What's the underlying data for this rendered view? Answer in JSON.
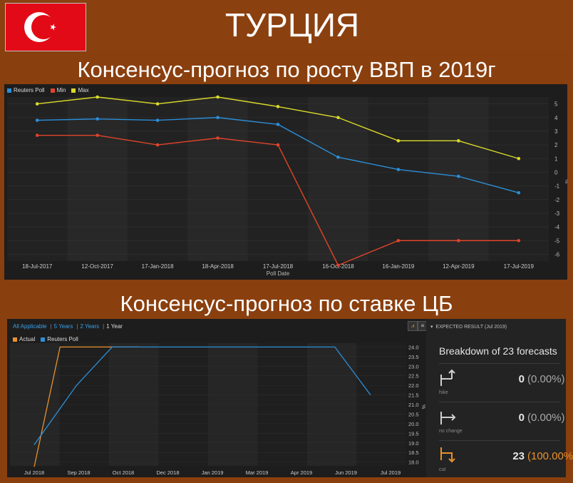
{
  "header": {
    "title": "ТУРЦИЯ",
    "flag_colors": {
      "red": "#e30a17",
      "white": "#ffffff"
    }
  },
  "gdp_section": {
    "title": "Консенсус-прогноз по росту ВВП в 2019г"
  },
  "rate_section": {
    "title": "Консенсус-прогноз по ставке ЦБ",
    "range_links": [
      "All Applicable",
      "5 Years",
      "2 Years",
      "1 Year"
    ],
    "active_range": "1 Year",
    "side_panel": {
      "header": "EXPECTED RESULT (Jul 2019)",
      "title": "Breakdown of 23 forecasts",
      "rows": [
        {
          "icon": "hike-icon",
          "label": "hike",
          "count": "0",
          "pct": "(0.00%)"
        },
        {
          "icon": "no-change-icon",
          "label": "no change",
          "count": "0",
          "pct": "(0.00%)"
        },
        {
          "icon": "cut-icon",
          "label": "cut",
          "count": "23",
          "pct": "(100.00%)"
        }
      ]
    }
  },
  "chart_data": [
    {
      "type": "line",
      "title": "",
      "xlabel": "Poll Date",
      "ylabel": "%",
      "ylim": [
        -6.5,
        5.5
      ],
      "yticks": [
        5,
        4,
        3,
        2,
        1,
        0,
        -1,
        -2,
        -3,
        -4,
        -5,
        -6
      ],
      "grid": true,
      "legend_position": "top-left",
      "categories": [
        "18-Jul-2017",
        "12-Oct-2017",
        "17-Jan-2018",
        "18-Apr-2018",
        "17-Jul-2018",
        "16-Oct-2018",
        "16-Jan-2019",
        "12-Apr-2019",
        "17-Jul-2019"
      ],
      "series": [
        {
          "name": "Reuters Poll",
          "color": "#2b8fd9",
          "values": [
            3.8,
            3.9,
            3.8,
            4.0,
            3.5,
            1.1,
            0.2,
            -0.3,
            -1.5
          ]
        },
        {
          "name": "Min",
          "color": "#e0442a",
          "values": [
            2.7,
            2.7,
            2.0,
            2.5,
            2.0,
            -6.8,
            -5.0,
            -5.0,
            -5.0
          ]
        },
        {
          "name": "Max",
          "color": "#dada2a",
          "values": [
            5.0,
            5.5,
            5.0,
            5.5,
            4.8,
            4.0,
            2.3,
            2.3,
            1.0
          ]
        }
      ]
    },
    {
      "type": "line",
      "title": "",
      "xlabel": "",
      "ylabel": "%",
      "ylim": [
        17.8,
        24.2
      ],
      "yticks": [
        "24.0",
        "23.5",
        "23.0",
        "22.5",
        "22.0",
        "21.5",
        "21.0",
        "20.5",
        "20.0",
        "19.5",
        "19.0",
        "18.5",
        "18.0"
      ],
      "grid": true,
      "legend_position": "top-left",
      "categories": [
        "Jul 2018",
        "Sep 2018",
        "Oct 2018",
        "Dec 2018",
        "Jan 2019",
        "Mar 2019",
        "Apr 2019",
        "Jun 2019",
        "Jul 2019"
      ],
      "series": [
        {
          "name": "Actual",
          "color": "#e8912d",
          "x": [
            0,
            0.58,
            2.35
          ],
          "values": [
            17.75,
            24.0,
            24.0
          ]
        },
        {
          "name": "Reuters Poll",
          "color": "#2b8fd9",
          "x": [
            0,
            0.95,
            1.75,
            2.35,
            3.6,
            4.7,
            5.8,
            6.75,
            7.55
          ],
          "values": [
            18.9,
            22.0,
            24.0,
            24.0,
            24.0,
            24.0,
            24.0,
            24.0,
            21.5
          ]
        }
      ]
    }
  ]
}
